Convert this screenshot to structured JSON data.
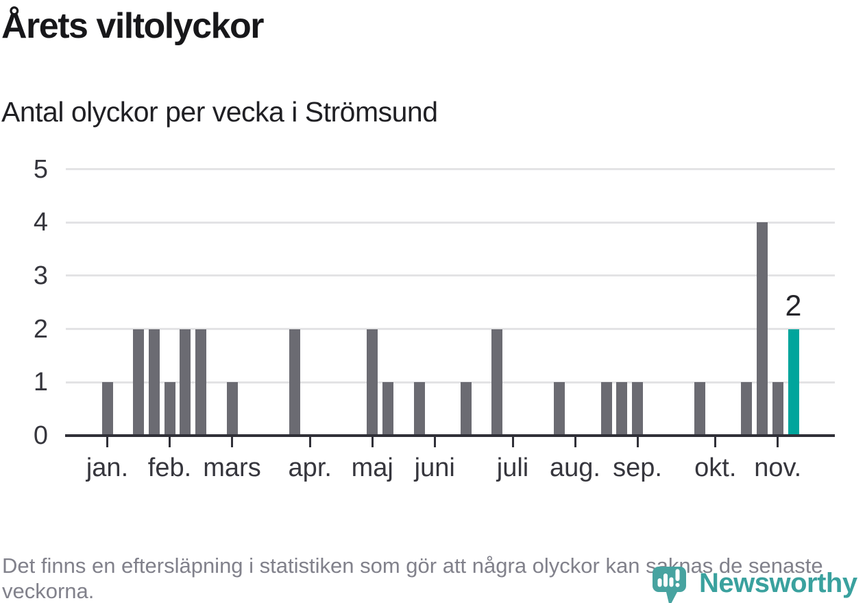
{
  "header": {
    "title": "Årets viltolyckor",
    "subtitle": "Antal olyckor per vecka i Strömsund"
  },
  "chart_data": {
    "type": "bar",
    "title": "Årets viltolyckor",
    "subtitle": "Antal olyckor per vecka i Strömsund",
    "xlabel": "",
    "ylabel": "",
    "x_unit": "vecka",
    "ylim": [
      0,
      5
    ],
    "yticks": [
      0,
      1,
      2,
      3,
      4,
      5
    ],
    "grid": "horizontal",
    "legend": "none",
    "num_weeks": 45,
    "values": [
      1,
      0,
      2,
      2,
      1,
      2,
      2,
      0,
      1,
      0,
      0,
      0,
      2,
      0,
      0,
      0,
      0,
      2,
      1,
      0,
      1,
      0,
      0,
      1,
      0,
      2,
      0,
      0,
      0,
      1,
      0,
      0,
      1,
      1,
      1,
      0,
      0,
      0,
      1,
      0,
      0,
      1,
      4,
      1,
      2
    ],
    "month_ticks": [
      {
        "label": "jan.",
        "week": 0
      },
      {
        "label": "feb.",
        "week": 4
      },
      {
        "label": "mars",
        "week": 8
      },
      {
        "label": "apr.",
        "week": 13
      },
      {
        "label": "maj",
        "week": 17
      },
      {
        "label": "juni",
        "week": 21
      },
      {
        "label": "juli",
        "week": 26
      },
      {
        "label": "aug.",
        "week": 30
      },
      {
        "label": "sep.",
        "week": 34
      },
      {
        "label": "okt.",
        "week": 39
      },
      {
        "label": "nov.",
        "week": 43
      }
    ],
    "highlight": {
      "week": 44,
      "value": 2,
      "label": "2"
    },
    "colors": {
      "bar": "#6b6b72",
      "highlight_bar": "#00a59c",
      "gridline": "#e3e3e5",
      "axis": "#303038",
      "tick_label": "#36363d"
    }
  },
  "footer": {
    "note": "Det finns en eftersläpning i statistiken som gör att några olyckor kan saknas de senaste veckorna."
  },
  "logo": {
    "text": "Newsworthy",
    "icon": "newsworthy-bars-speech-bubble-icon",
    "icon_color": "#47a3a0",
    "icon_glyph_color": "#ffffff",
    "text_color": "#3aa19e"
  }
}
